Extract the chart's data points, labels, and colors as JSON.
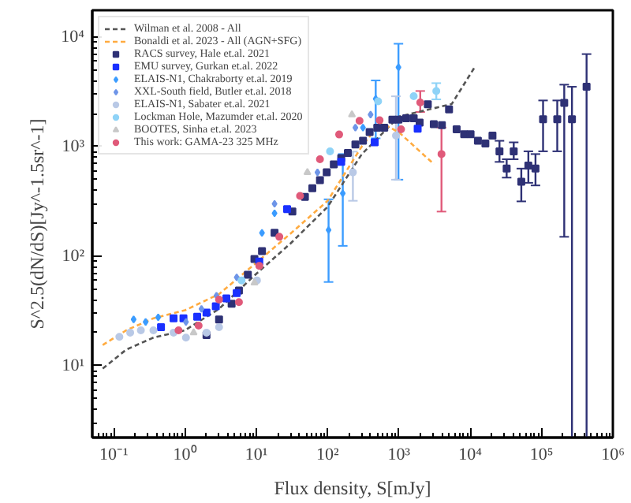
{
  "chart_data": {
    "type": "scatter",
    "xlabel": "Flux density, S[mJy]",
    "ylabel": "S^2.5(dN/dS)[Jy^-1.5sr^-1]",
    "log": "xy",
    "grid": false,
    "legend": "top left",
    "xlim": [
      0.05,
      1000000
    ],
    "ylim": [
      2.2,
      17600
    ],
    "xticks": [
      {
        "value": 0.1,
        "label": "10⁻¹"
      },
      {
        "value": 1,
        "label": "10⁰"
      },
      {
        "value": 10,
        "label": "10¹"
      },
      {
        "value": 100,
        "label": "10²"
      },
      {
        "value": 1000,
        "label": "10³"
      },
      {
        "value": 10000,
        "label": "10⁴"
      },
      {
        "value": 100000,
        "label": "10⁵"
      },
      {
        "value": 1000000,
        "label": "10⁶"
      }
    ],
    "yticks": [
      {
        "value": 10,
        "label": "10¹"
      },
      {
        "value": 100,
        "label": "10²"
      },
      {
        "value": 1000,
        "label": "10³"
      },
      {
        "value": 10000,
        "label": "10⁴"
      }
    ],
    "series": [
      {
        "name": "Wilman et al. 2008 - All",
        "type": "line",
        "line_style": "dashed",
        "color": "#555555",
        "x": [
          0.07,
          0.15,
          0.36,
          1,
          3,
          10,
          30,
          100,
          300,
          1000,
          5500,
          11500
        ],
        "values": [
          9.4,
          14,
          18,
          21,
          33,
          69,
          130,
          282,
          850,
          1880,
          2450,
          5300
        ]
      },
      {
        "name": "Bonaldi et al. 2023 - All (AGN+SFG)",
        "type": "line",
        "line_style": "dashed",
        "color": "#ffab40",
        "x": [
          0.07,
          0.15,
          0.36,
          1,
          3,
          10,
          30,
          100,
          300,
          550,
          1000,
          3100
        ],
        "values": [
          15.4,
          21,
          27,
          32,
          45,
          87,
          160,
          320,
          1000,
          1660,
          1350,
          690
        ]
      },
      {
        "name": "RACS survey, Hale et.al. 2021",
        "marker": "square",
        "color": "#2e3175",
        "x": [
          2,
          3.0,
          4.5,
          5.7,
          7.6,
          9.4,
          12,
          18,
          32,
          48,
          61,
          78,
          97,
          122,
          155,
          192,
          245,
          313,
          388,
          496,
          622,
          809,
          984,
          1260,
          1610,
          1950,
          2540,
          3080,
          4000,
          5040,
          6440,
          8220,
          10100,
          12800,
          16300,
          20500,
          25700,
          32400,
          40700,
          52000,
          65300,
          82200,
          105000,
          166000,
          208000,
          267000,
          428000
        ],
        "values": [
          19,
          26.4,
          36.7,
          48.5,
          67.6,
          94,
          111,
          163,
          255,
          347,
          417,
          493,
          582,
          687,
          785,
          875,
          1045,
          1130,
          1360,
          1490,
          1490,
          1760,
          1760,
          1815,
          1815,
          1660,
          2440,
          1600,
          1570,
          2190,
          1440,
          1300,
          1300,
          1130,
          1070,
          1260,
          906,
          630,
          906,
          477,
          671,
          630,
          1780,
          1780,
          2510,
          1780,
          3520
        ],
        "errors": [
          null,
          null,
          null,
          null,
          null,
          null,
          null,
          null,
          null,
          null,
          null,
          null,
          null,
          null,
          null,
          null,
          null,
          null,
          null,
          null,
          null,
          null,
          null,
          null,
          null,
          null,
          null,
          null,
          null,
          null,
          null,
          null,
          null,
          null,
          null,
          null,
          [
            725,
            1130
          ],
          [
            521,
            767
          ],
          [
            767,
            1094
          ],
          [
            316,
            630
          ],
          [
            467,
            906
          ],
          [
            442,
            855
          ],
          [
            906,
            2640
          ],
          [
            906,
            2640
          ],
          [
            150,
            3680
          ],
          [
            2.2,
            3520
          ],
          [
            2.2,
            7000
          ]
        ]
      },
      {
        "name": "EMU survey, Gurkan et.al. 2022",
        "marker": "square",
        "color": "#1a30ff",
        "x": [
          0.46,
          0.69,
          0.95,
          1.48,
          2,
          2.7,
          3.8,
          5.3,
          11,
          27,
          155,
          457,
          1830
        ],
        "values": [
          22.4,
          27,
          27,
          27.9,
          30.5,
          34.8,
          41,
          46,
          89,
          268,
          725,
          1094,
          1455
        ]
      },
      {
        "name": "ELAIS-N1, Chakraborty et.al. 2019",
        "marker": "diamond",
        "color": "#3b9cff",
        "x": [
          0.19,
          0.28,
          0.42,
          12,
          18,
          103,
          163,
          313,
          472,
          984
        ],
        "values": [
          26.4,
          25,
          27.6,
          163,
          246,
          173,
          374,
          1490,
          2730,
          5300
        ],
        "errors": [
          null,
          null,
          null,
          null,
          null,
          [
            58,
            330
          ],
          [
            124,
            855
          ],
          null,
          [
            1190,
            4020
          ],
          [
            499,
            8700
          ]
        ]
      },
      {
        "name": "XXL-South field, Butler et.al. 2018",
        "marker": "diamond",
        "color": "#6e95e8",
        "x": [
          1.03,
          1.7,
          2.76,
          5.3,
          18,
          72,
          245,
          400
        ],
        "values": [
          25,
          33,
          43.5,
          64,
          300,
          582,
          1490,
          1960
        ]
      },
      {
        "name": "ELAIS-N1, Sabater et.al. 2021",
        "marker": "circle",
        "color": "#b9c9e6",
        "x": [
          0.12,
          0.17,
          0.24,
          0.36,
          0.69,
          1.03,
          2,
          3,
          10.2,
          226,
          908
        ],
        "values": [
          18.3,
          20,
          21,
          21,
          20,
          18,
          20,
          22.4,
          60,
          582,
          1260
        ],
        "errors": [
          null,
          null,
          null,
          null,
          null,
          null,
          null,
          null,
          null,
          [
            320,
            900
          ],
          [
            499,
            2880
          ]
        ]
      },
      {
        "name": "Lockman Hole, Mazumder et.al. 2020",
        "marker": "circle",
        "color": "#8fd3f7",
        "x": [
          6.2,
          108,
          510,
          1610,
          3340
        ],
        "values": [
          60,
          906,
          2590,
          2890,
          3220
        ],
        "errors": [
          null,
          null,
          null,
          null,
          [
            2700,
            3800
          ]
        ]
      },
      {
        "name": "BOOTES, Sinha et.al. 2023",
        "marker": "triangle",
        "color": "#c8c8c8",
        "x": [
          1.32,
          9.4,
          52,
          219
        ],
        "values": [
          20,
          57,
          582,
          1960
        ]
      },
      {
        "name": "This work: GAMA-23 325 MHz",
        "marker": "circle",
        "color": "#e05a7a",
        "x": [
          0.81,
          1.55,
          3.0,
          5.7,
          11,
          21,
          41,
          78,
          145,
          280,
          535,
          1070,
          1990,
          3950
        ],
        "values": [
          21,
          23.2,
          40,
          37.9,
          81.5,
          150,
          355,
          767,
          1290,
          1720,
          1740,
          1440,
          2530,
          855
        ],
        "errors": [
          null,
          null,
          null,
          null,
          null,
          null,
          null,
          null,
          null,
          null,
          null,
          null,
          [
            2070,
            3220
          ],
          [
            255,
            1490
          ]
        ]
      }
    ]
  }
}
